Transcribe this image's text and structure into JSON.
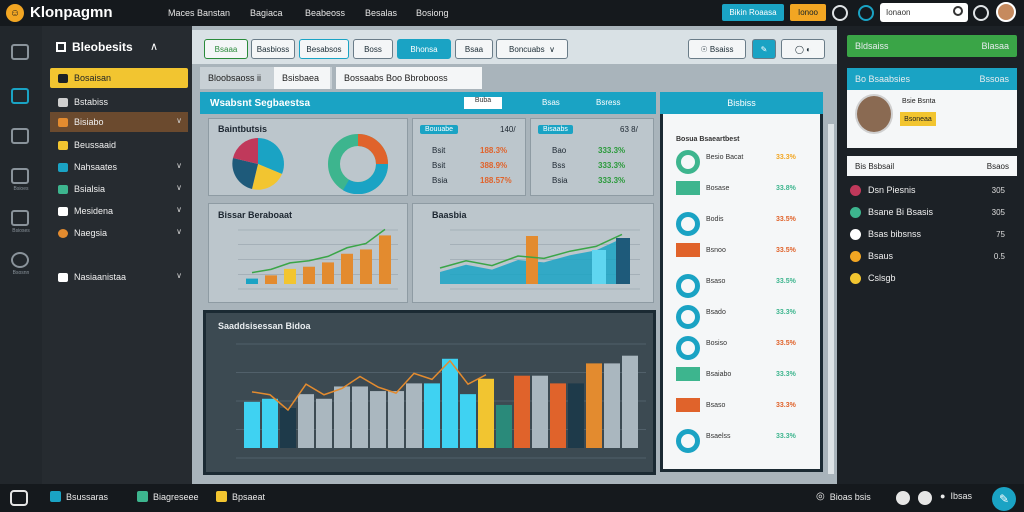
{
  "app": {
    "name": "Klonpagmn"
  },
  "topnav": [
    "Maces Banstan",
    "Bagiaca",
    "Beabeoss",
    "Besalas",
    "Bosiong"
  ],
  "top_buttons": [
    {
      "label": "Bikin Roaasa",
      "color": "#1aa3c4"
    },
    {
      "label": "Ionoo",
      "color": "#f2a623"
    }
  ],
  "search": {
    "placeholder": "Ionaon"
  },
  "sidebar": {
    "title": "Bleobesits",
    "items": [
      {
        "label": "Bosaisan",
        "color": "#f2c530",
        "active": true
      },
      {
        "label": "Bstabiss",
        "color": "#cfcfcf"
      },
      {
        "label": "Bisiabo",
        "color": "#e38b2f",
        "highlight": true
      },
      {
        "label": "Beussaaid",
        "color": "#f2c530"
      },
      {
        "label": "Nahsaates",
        "color": "#1aa3c4"
      },
      {
        "label": "Bsialsia",
        "color": "#3db58e"
      },
      {
        "label": "Mesidena",
        "color": "#ffffff"
      },
      {
        "label": "Naegsia",
        "color": "#e38b2f"
      },
      {
        "label": "Nasiaanistaa",
        "color": "#ffffff"
      }
    ]
  },
  "rail": [
    "Bsioes",
    "Bsioses",
    "Bsosnn"
  ],
  "main": {
    "tabs": [
      "Bsaaa",
      "Basbioss",
      "Besabsos",
      "Boss",
      "Bhonsa",
      "Bsaa",
      "Boncuabs"
    ],
    "subtabs": [
      "Bloobsaoss ii",
      "Bsisbaea",
      "Bossaabs  Boo  Bbrobooss"
    ],
    "widget_title": "Wsabsnt Segbaestsa",
    "widget_ctrl": [
      "Buba",
      "Bsas",
      "Bsress"
    ],
    "right_header": "Bisbiss",
    "pies_title": "Baintbutsis",
    "stats_a": {
      "tag": "Bouuabe",
      "pct": "140/",
      "rows": [
        {
          "label": "Bsit",
          "value": "188.3%"
        },
        {
          "label": "Bsit",
          "value": "388.9%"
        },
        {
          "label": "Bsia",
          "value": "188.57%"
        }
      ]
    },
    "stats_b": {
      "tag": "Bisaabs",
      "pct": "63 8/",
      "rows": [
        {
          "label": "Bao",
          "value": "333.3%"
        },
        {
          "label": "Bss",
          "value": "333.3%"
        },
        {
          "label": "Bsia",
          "value": "333.3%"
        }
      ]
    },
    "chart2_title": "Bissar Beraboaat",
    "chart3_title": "Baasbia",
    "chart4_title": "Saaddsisessan Bidoa"
  },
  "right_list": {
    "header": "Bosua Bsaeartbest",
    "rows": [
      {
        "name": "Besio Bacat",
        "value": "33.3%",
        "color": "#f2a623"
      },
      {
        "name": "Bosase",
        "value": "33.8%",
        "color": "#3db58e"
      },
      {
        "name": "Bodis",
        "value": "33.5%",
        "color": "#e0632b"
      },
      {
        "name": "Bsnoo",
        "value": "33.5%",
        "color": "#e0632b"
      },
      {
        "name": "Bsaso",
        "value": "33.5%",
        "color": "#3db58e"
      },
      {
        "name": "Bsado",
        "value": "33.3%",
        "color": "#3db58e"
      },
      {
        "name": "Bosiso",
        "value": "33.5%",
        "color": "#e0632b"
      },
      {
        "name": "Bsaiabo",
        "value": "33.3%",
        "color": "#3db58e"
      },
      {
        "name": "Bsaso",
        "value": "33.3%",
        "color": "#e0632b"
      },
      {
        "name": "Bsaelss",
        "value": "33.3%",
        "color": "#3db58e"
      }
    ]
  },
  "rside": {
    "green_label": "Bldsaiss",
    "green_value": "Blasaa",
    "profile_header": "Bo Bsaabsies",
    "profile_value": "Bssoas",
    "profile_name": "Bsie Bsnta",
    "profile_badge": "Bsoneaa",
    "list_header": "Bis Bsbsail",
    "list_header_value": "Bsaos",
    "items": [
      {
        "label": "Dsn Piesnis",
        "value": "305",
        "color": "#c0395b"
      },
      {
        "label": "Bsane Bi Bsasis",
        "value": "305",
        "color": "#3db58e"
      },
      {
        "label": "Bsas bibsnss",
        "value": "75",
        "color": "#ffffff"
      },
      {
        "label": "Bsaus",
        "value": "0.5",
        "color": "#f2a623"
      },
      {
        "label": "Cslsgb",
        "value": "",
        "color": "#f2c530"
      }
    ]
  },
  "bottom": {
    "items": [
      "Bsussaras",
      "Biagreseee",
      "Bpsaeat"
    ],
    "right_label": "Bioas bsis",
    "right_label2": "Ibsas"
  },
  "chart_data": [
    {
      "type": "bar",
      "title": "Bissar Beraboaat",
      "series": [
        {
          "values": [
            5,
            8,
            14,
            16,
            20,
            28,
            32,
            45
          ]
        }
      ]
    },
    {
      "type": "area",
      "title": "Baasbia",
      "series": [
        {
          "values": [
            10,
            16,
            12,
            20,
            18,
            24,
            28,
            38
          ]
        }
      ]
    },
    {
      "type": "bar",
      "title": "Saaddsisessan Bidoa",
      "series": [
        {
          "values": [
            30,
            32,
            26,
            35,
            32,
            40,
            40,
            37,
            37,
            42,
            42,
            58,
            35,
            45,
            28,
            47,
            47,
            42,
            42,
            55,
            55,
            60
          ]
        }
      ]
    }
  ]
}
